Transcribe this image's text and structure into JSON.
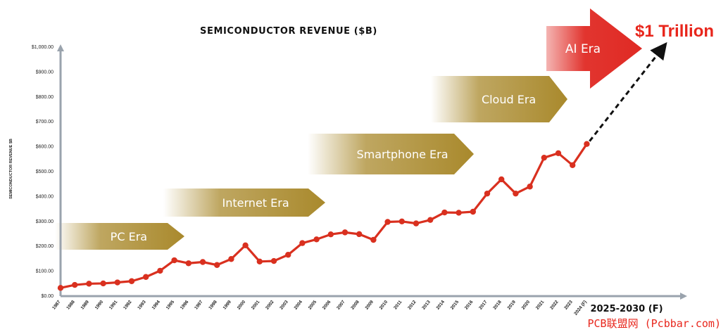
{
  "chart_data": {
    "type": "line",
    "title": "SEMICONDUCTOR REVENUE ($B)",
    "ylabel": "SEMICONDUCTOR REVENUE $B",
    "ylim": [
      0,
      1000
    ],
    "yticks": [
      "$0.00",
      "$100.00",
      "$200.00",
      "$300.00",
      "$400.00",
      "$500.00",
      "$600.00",
      "$700.00",
      "$800.00",
      "$900.00",
      "$1,000.00"
    ],
    "categories": [
      "1987",
      "1988",
      "1989",
      "1990",
      "1991",
      "1992",
      "1993",
      "1994",
      "1995",
      "1996",
      "1997",
      "1998",
      "1999",
      "2000",
      "2001",
      "2002",
      "2003",
      "2004",
      "2005",
      "2006",
      "2007",
      "2008",
      "2009",
      "2010",
      "2011",
      "2012",
      "2013",
      "2014",
      "2015",
      "2016",
      "2017",
      "2018",
      "2019",
      "2020",
      "2021",
      "2022",
      "2023",
      "2024 (F)"
    ],
    "series": [
      {
        "values": [
          33,
          45,
          50,
          51,
          55,
          60,
          77,
          102,
          144,
          132,
          137,
          125,
          149,
          204,
          139,
          141,
          166,
          213,
          228,
          248,
          256,
          249,
          226,
          298,
          300,
          292,
          306,
          336,
          335,
          339,
          412,
          469,
          412,
          440,
          556,
          574,
          526,
          611
        ],
        "color": "#d9301f"
      }
    ],
    "forecast": {
      "from": "2024 (F)",
      "to_label": "2025-2030 (F)",
      "target_value": 1000,
      "target_label": "$1 Trillion",
      "style": "dashed arrow"
    },
    "eras": [
      {
        "label": "PC Era",
        "color": "#a9892c"
      },
      {
        "label": "Internet Era",
        "color": "#a9892c"
      },
      {
        "label": "Smartphone Era",
        "color": "#a9892c"
      },
      {
        "label": "Cloud Era",
        "color": "#a9892c"
      },
      {
        "label": "AI Era",
        "color": "#e02a24"
      }
    ],
    "grid": false,
    "legend": "none"
  },
  "watermark": "PCB联盟网 (Pcbbar.com)",
  "colors": {
    "line": "#d9301f",
    "era_gold": "#a9892c",
    "ai_red": "#e02a24",
    "axis": "#9aa3ad"
  }
}
